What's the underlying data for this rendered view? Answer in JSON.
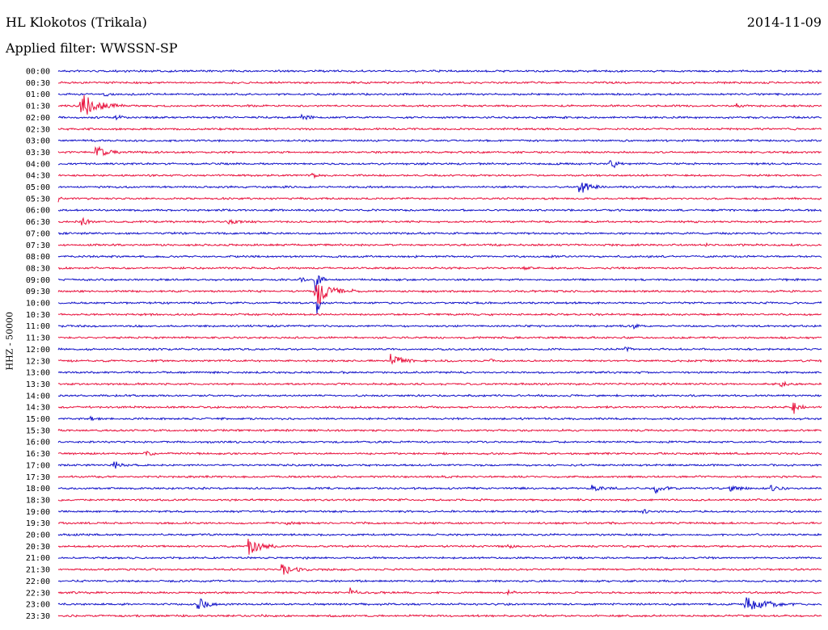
{
  "header": {
    "station": "HL Klokotos (Trikala)",
    "filter": "Applied filter: WWSSN-SP",
    "date": "2014-11-09",
    "channel": "HHZ - 50000"
  },
  "colors": {
    "even_trace": "#1010c8",
    "odd_trace": "#e8103c"
  },
  "chart_data": {
    "type": "line",
    "title": "HL Klokotos (Trikala)",
    "subtitle": "Applied filter: WWSSN-SP",
    "ylabel": "HHZ - 50000",
    "xlabel": "",
    "row_interval_minutes": 30,
    "x_range_minutes": [
      0,
      30
    ],
    "row_labels": [
      "00:00",
      "00:30",
      "01:00",
      "01:30",
      "02:00",
      "02:30",
      "03:00",
      "03:30",
      "04:00",
      "04:30",
      "05:00",
      "05:30",
      "06:00",
      "06:30",
      "07:00",
      "07:30",
      "08:00",
      "08:30",
      "09:00",
      "09:30",
      "10:00",
      "10:30",
      "11:00",
      "11:30",
      "12:00",
      "12:30",
      "13:00",
      "13:30",
      "14:00",
      "14:30",
      "15:00",
      "15:30",
      "16:00",
      "16:30",
      "17:00",
      "17:30",
      "18:00",
      "18:30",
      "19:00",
      "19:30",
      "20:00",
      "20:30",
      "21:00",
      "21:30",
      "22:00",
      "22:30",
      "23:00",
      "23:30"
    ],
    "events": [
      {
        "row": "01:00",
        "minute": 1.8,
        "amplitude": 0.15,
        "duration": 0.5
      },
      {
        "row": "01:30",
        "minute": 0.9,
        "amplitude": 1.0,
        "duration": 1.8
      },
      {
        "row": "01:30",
        "minute": 26.7,
        "amplitude": 0.15,
        "duration": 0.3
      },
      {
        "row": "02:00",
        "minute": 2.3,
        "amplitude": 0.2,
        "duration": 0.6
      },
      {
        "row": "02:00",
        "minute": 9.6,
        "amplitude": 0.2,
        "duration": 0.8
      },
      {
        "row": "03:30",
        "minute": 1.5,
        "amplitude": 0.55,
        "duration": 1.0
      },
      {
        "row": "04:00",
        "minute": 21.7,
        "amplitude": 0.5,
        "duration": 0.6
      },
      {
        "row": "04:30",
        "minute": 10.0,
        "amplitude": 0.15,
        "duration": 0.6
      },
      {
        "row": "05:00",
        "minute": 20.5,
        "amplitude": 0.55,
        "duration": 1.0
      },
      {
        "row": "05:30",
        "minute": 0.0,
        "amplitude": 0.2,
        "duration": 0.4
      },
      {
        "row": "06:30",
        "minute": 0.9,
        "amplitude": 0.35,
        "duration": 0.6
      },
      {
        "row": "06:30",
        "minute": 6.7,
        "amplitude": 0.2,
        "duration": 0.9
      },
      {
        "row": "07:30",
        "minute": 25.4,
        "amplitude": 0.1,
        "duration": 0.4
      },
      {
        "row": "08:00",
        "minute": 19.3,
        "amplitude": 0.1,
        "duration": 0.4
      },
      {
        "row": "08:30",
        "minute": 18.3,
        "amplitude": 0.1,
        "duration": 0.6
      },
      {
        "row": "09:00",
        "minute": 9.5,
        "amplitude": 0.2,
        "duration": 0.5
      },
      {
        "row": "09:00",
        "minute": 10.1,
        "amplitude": 1.2,
        "duration": 0.5
      },
      {
        "row": "09:30",
        "minute": 10.1,
        "amplitude": 1.5,
        "duration": 1.2
      },
      {
        "row": "09:30",
        "minute": 11.6,
        "amplitude": 0.15,
        "duration": 0.4
      },
      {
        "row": "10:00",
        "minute": 10.2,
        "amplitude": 0.8,
        "duration": 0.3
      },
      {
        "row": "11:00",
        "minute": 22.6,
        "amplitude": 0.15,
        "duration": 0.5
      },
      {
        "row": "12:00",
        "minute": 22.3,
        "amplitude": 0.15,
        "duration": 0.5
      },
      {
        "row": "12:30",
        "minute": 13.1,
        "amplitude": 0.7,
        "duration": 0.9
      },
      {
        "row": "12:30",
        "minute": 17.0,
        "amplitude": 0.1,
        "duration": 0.3
      },
      {
        "row": "13:30",
        "minute": 28.4,
        "amplitude": 0.2,
        "duration": 0.8
      },
      {
        "row": "14:30",
        "minute": 28.9,
        "amplitude": 0.55,
        "duration": 0.5
      },
      {
        "row": "15:00",
        "minute": 1.3,
        "amplitude": 0.15,
        "duration": 0.6
      },
      {
        "row": "16:30",
        "minute": 3.4,
        "amplitude": 0.15,
        "duration": 0.8
      },
      {
        "row": "17:00",
        "minute": 2.2,
        "amplitude": 0.3,
        "duration": 0.7
      },
      {
        "row": "18:00",
        "minute": 21.0,
        "amplitude": 0.2,
        "duration": 1.2
      },
      {
        "row": "18:00",
        "minute": 23.5,
        "amplitude": 0.35,
        "duration": 1.0
      },
      {
        "row": "18:00",
        "minute": 26.4,
        "amplitude": 0.2,
        "duration": 0.8
      },
      {
        "row": "18:00",
        "minute": 28.0,
        "amplitude": 0.2,
        "duration": 0.8
      },
      {
        "row": "19:00",
        "minute": 23.0,
        "amplitude": 0.2,
        "duration": 0.4
      },
      {
        "row": "19:30",
        "minute": 9.0,
        "amplitude": 0.1,
        "duration": 0.7
      },
      {
        "row": "20:30",
        "minute": 7.5,
        "amplitude": 0.65,
        "duration": 1.1
      },
      {
        "row": "20:30",
        "minute": 17.7,
        "amplitude": 0.15,
        "duration": 0.5
      },
      {
        "row": "21:30",
        "minute": 8.8,
        "amplitude": 0.45,
        "duration": 1.2
      },
      {
        "row": "22:30",
        "minute": 11.5,
        "amplitude": 0.35,
        "duration": 0.5
      },
      {
        "row": "22:30",
        "minute": 17.7,
        "amplitude": 0.25,
        "duration": 0.5
      },
      {
        "row": "23:00",
        "minute": 5.5,
        "amplitude": 0.55,
        "duration": 0.8
      },
      {
        "row": "23:00",
        "minute": 27.0,
        "amplitude": 0.55,
        "duration": 2.2
      },
      {
        "row": "23:30",
        "minute": 0.5,
        "amplitude": 0.15,
        "duration": 0.4
      },
      {
        "row": "23:30",
        "minute": 8.0,
        "amplitude": 0.1,
        "duration": 0.4
      }
    ]
  }
}
